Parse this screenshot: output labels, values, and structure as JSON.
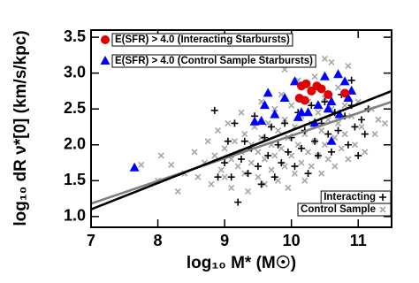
{
  "chart_data": {
    "type": "scatter",
    "x_label": "log₁₀ M* (M☉)",
    "y_label": "log₁₀ dR ν*[0] (km/s/kpc)",
    "xlim": [
      7,
      11.5
    ],
    "ylim": [
      0.85,
      3.6
    ],
    "xticks": [
      7,
      8,
      9,
      10,
      11
    ],
    "yticks": [
      {
        "value": 1.0,
        "label": "1.0"
      },
      {
        "value": 1.5,
        "label": "1.5"
      },
      {
        "value": 2.0,
        "label": "2.0"
      },
      {
        "value": 2.5,
        "label": "2.5"
      },
      {
        "value": 3.0,
        "label": "3.0"
      },
      {
        "value": 3.5,
        "label": "3.5"
      }
    ],
    "series": [
      {
        "name": "Control Sample",
        "color": "#a6a6a6",
        "marker": "x",
        "legend": "lower right",
        "x": [
          8.05,
          8.2,
          8.4,
          8.55,
          8.6,
          8.7,
          8.75,
          8.8,
          8.85,
          8.9,
          8.95,
          9.0,
          9.0,
          9.05,
          9.1,
          9.1,
          9.15,
          9.2,
          9.25,
          9.25,
          9.3,
          9.3,
          9.35,
          9.4,
          9.4,
          9.45,
          9.5,
          9.5,
          9.55,
          9.55,
          9.6,
          9.6,
          9.65,
          9.7,
          9.7,
          9.75,
          9.75,
          9.8,
          9.8,
          9.85,
          9.85,
          9.9,
          9.9,
          9.95,
          9.95,
          10.0,
          10.0,
          10.05,
          10.05,
          10.1,
          10.1,
          10.15,
          10.15,
          10.2,
          10.2,
          10.25,
          10.25,
          10.3,
          10.3,
          10.35,
          10.35,
          10.4,
          10.4,
          10.45,
          10.45,
          10.5,
          10.5,
          10.55,
          10.55,
          10.6,
          10.6,
          10.65,
          10.65,
          10.7,
          10.7,
          10.75,
          10.8,
          10.8,
          10.85,
          10.85,
          10.9,
          10.95,
          11.0,
          11.05,
          11.1,
          11.2,
          11.25,
          11.3,
          7.75,
          8.3,
          9.9,
          10.5,
          8.0,
          11.4
        ],
        "y": [
          1.85,
          1.72,
          1.6,
          1.9,
          1.55,
          1.75,
          2.05,
          1.45,
          1.85,
          2.2,
          1.65,
          1.95,
          1.55,
          2.3,
          1.8,
          1.4,
          2.05,
          1.7,
          2.45,
          1.9,
          1.6,
          2.15,
          1.35,
          2.0,
          1.75,
          2.25,
          1.55,
          1.9,
          2.6,
          2.1,
          1.8,
          1.45,
          2.3,
          2.0,
          1.65,
          2.5,
          1.85,
          2.2,
          1.5,
          2.7,
          1.95,
          2.35,
          1.7,
          2.1,
          1.4,
          2.55,
          1.85,
          2.25,
          1.6,
          2.0,
          2.9,
          1.75,
          2.4,
          2.15,
          1.5,
          2.6,
          1.9,
          2.3,
          1.7,
          2.05,
          2.95,
          2.45,
          1.85,
          2.2,
          1.6,
          2.65,
          2.0,
          2.35,
          1.8,
          2.5,
          3.15,
          2.1,
          1.7,
          2.8,
          2.3,
          1.95,
          2.55,
          2.15,
          3.1,
          1.8,
          2.4,
          2.0,
          2.6,
          2.25,
          1.9,
          2.5,
          2.15,
          2.35,
          1.72,
          1.35,
          3.05,
          3.2,
          1.5,
          2.3
        ]
      },
      {
        "name": "Interacting",
        "color": "#000000",
        "marker": "plus",
        "legend": "lower right",
        "x": [
          8.85,
          8.9,
          9.0,
          9.05,
          9.1,
          9.15,
          9.25,
          9.3,
          9.35,
          9.4,
          9.45,
          9.5,
          9.55,
          9.6,
          9.65,
          9.7,
          9.75,
          9.8,
          9.85,
          9.9,
          9.95,
          10.0,
          10.05,
          10.1,
          10.15,
          10.2,
          10.25,
          10.3,
          10.35,
          10.4,
          10.45,
          10.5,
          10.55,
          10.6,
          10.65,
          10.7,
          10.75,
          10.8,
          10.85,
          10.9,
          10.95,
          11.0,
          11.05,
          11.15,
          11.1,
          10.9,
          9.2
        ],
        "y": [
          2.48,
          1.55,
          1.75,
          2.05,
          1.55,
          2.3,
          1.8,
          2.05,
          1.6,
          1.95,
          2.4,
          1.7,
          1.45,
          2.1,
          1.85,
          2.25,
          1.55,
          2.0,
          1.75,
          2.3,
          1.9,
          2.1,
          1.7,
          2.45,
          1.95,
          2.2,
          1.6,
          2.55,
          2.05,
          1.85,
          2.3,
          2.6,
          2.15,
          1.9,
          2.45,
          2.2,
          2.7,
          2.4,
          2.0,
          2.55,
          2.25,
          1.85,
          2.35,
          2.5,
          2.15,
          2.9,
          1.2
        ]
      },
      {
        "name": "E(SFR) > 4.0 (Control Sample Starbursts)",
        "color": "#0000ff",
        "marker": "triangle",
        "legend": "upper left",
        "x": [
          7.65,
          9.45,
          9.55,
          9.6,
          9.65,
          9.75,
          9.9,
          10.05,
          10.15,
          10.25,
          10.35,
          10.5,
          10.55,
          10.6,
          10.7,
          10.72,
          10.8,
          10.85,
          10.9,
          10.6,
          10.1,
          10.4
        ],
        "y": [
          1.68,
          2.32,
          2.33,
          2.55,
          2.72,
          2.42,
          2.65,
          2.88,
          2.45,
          2.45,
          2.3,
          2.95,
          2.5,
          2.6,
          2.98,
          2.42,
          2.88,
          2.65,
          2.75,
          2.05,
          2.38,
          2.55
        ]
      },
      {
        "name": "E(SFR) > 4.0 (Interacting Starbursts)",
        "color": "#e00000",
        "marker": "circle",
        "legend": "upper left",
        "x": [
          10.15,
          10.22,
          10.3,
          10.38,
          10.45,
          10.55,
          10.2,
          10.8,
          10.12
        ],
        "y": [
          2.82,
          2.85,
          2.75,
          2.82,
          2.78,
          2.7,
          2.62,
          2.72,
          2.65
        ]
      }
    ],
    "fit_lines": [
      {
        "color": "#808080",
        "x": [
          7,
          11.5
        ],
        "y": [
          1.18,
          2.6
        ]
      },
      {
        "color": "#000000",
        "x": [
          7,
          11.5
        ],
        "y": [
          1.1,
          2.75
        ]
      }
    ]
  }
}
